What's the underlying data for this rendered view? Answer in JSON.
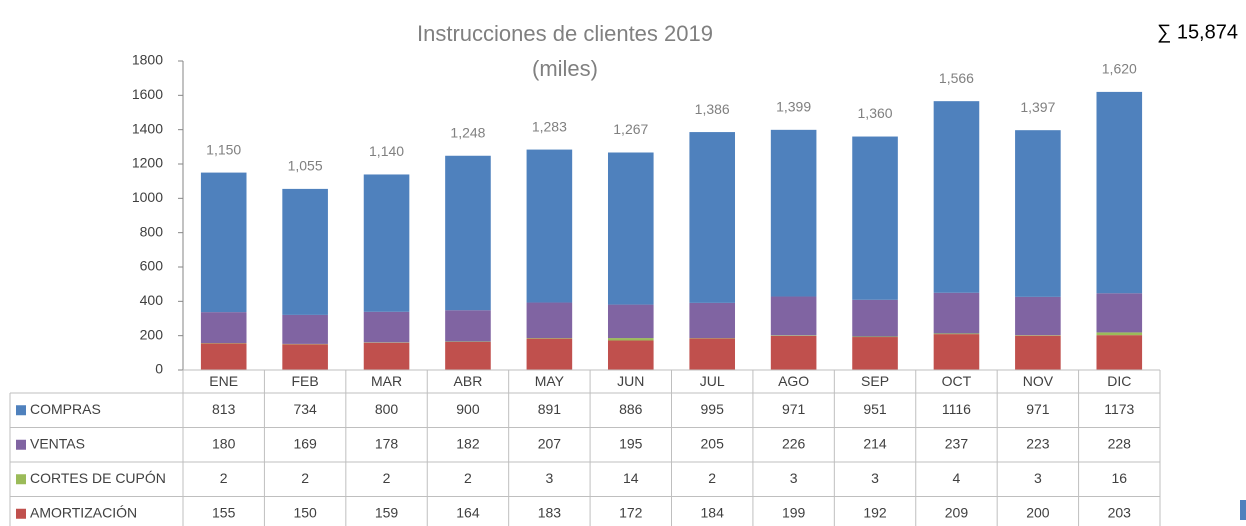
{
  "chart_data": {
    "type": "stacked_bar",
    "title": "Instrucciones de clientes 2019",
    "subtitle": "(miles)",
    "annotation": "∑ 15,874",
    "categories": [
      "ENE",
      "FEB",
      "MAR",
      "ABR",
      "MAY",
      "JUN",
      "JUL",
      "AGO",
      "SEP",
      "OCT",
      "NOV",
      "DIC"
    ],
    "series": [
      {
        "name": "COMPRAS",
        "color": "#4f81bd",
        "values": [
          813,
          734,
          800,
          900,
          891,
          886,
          995,
          971,
          951,
          1116,
          971,
          1173
        ]
      },
      {
        "name": "VENTAS",
        "color": "#8064a2",
        "values": [
          180,
          169,
          178,
          182,
          207,
          195,
          205,
          226,
          214,
          237,
          223,
          228
        ]
      },
      {
        "name": "CORTES DE CUPÓN",
        "color": "#9bbb59",
        "values": [
          2,
          2,
          2,
          2,
          3,
          14,
          2,
          3,
          3,
          4,
          3,
          16
        ]
      },
      {
        "name": "AMORTIZACIÓN",
        "color": "#c0504d",
        "values": [
          155,
          150,
          159,
          164,
          183,
          172,
          184,
          199,
          192,
          209,
          200,
          203
        ]
      }
    ],
    "totals": {
      "values": [
        1150,
        1055,
        1140,
        1248,
        1283,
        1267,
        1386,
        1399,
        1360,
        1566,
        1397,
        1620
      ],
      "labels": [
        "1,150",
        "1,055",
        "1,140",
        "1,248",
        "1,283",
        "1,267",
        "1,386",
        "1,399",
        "1,360",
        "1,566",
        "1,397",
        "1,620"
      ]
    },
    "ylim": [
      0,
      1800
    ],
    "yticks": [
      0,
      200,
      400,
      600,
      800,
      1000,
      1200,
      1400,
      1600,
      1800
    ],
    "grid": false
  }
}
